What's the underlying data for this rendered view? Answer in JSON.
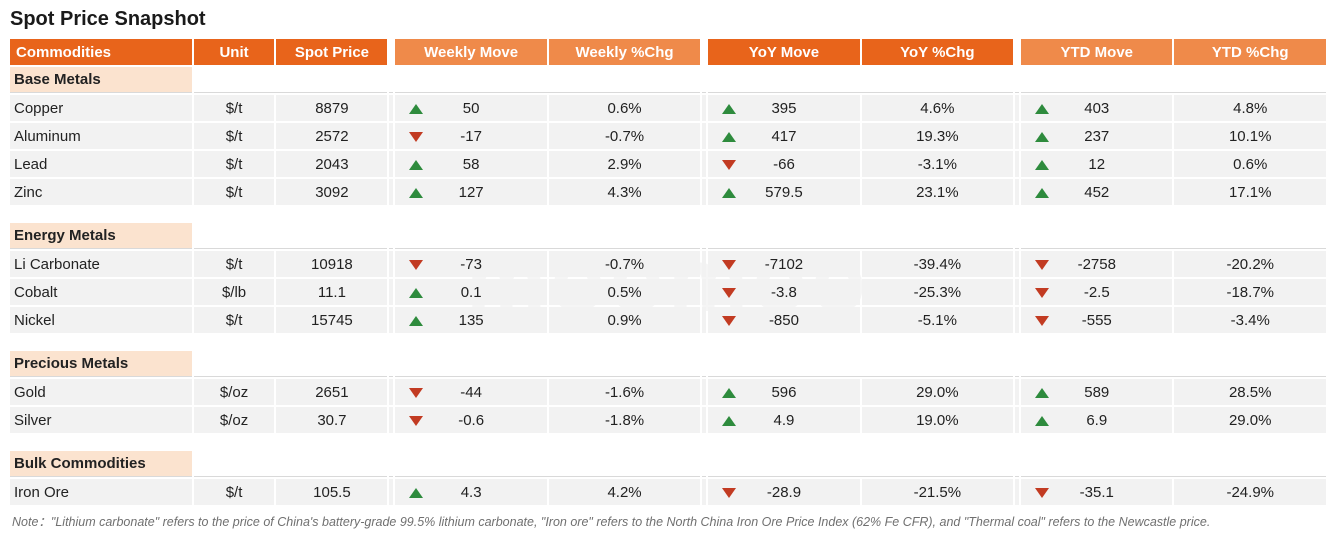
{
  "title": "Spot Price Snapshot",
  "headers": {
    "commodities": "Commodities",
    "unit": "Unit",
    "spot_price": "Spot Price",
    "weekly_move": "Weekly Move",
    "weekly_pct": "Weekly %Chg",
    "yoy_move": "YoY Move",
    "yoy_pct": "YoY  %Chg",
    "ytd_move": "YTD Move",
    "ytd_pct": "YTD %Chg"
  },
  "header_colors": {
    "group1": "#e8641b",
    "group2": "#ef8a4a",
    "group3": "#e8641b",
    "group4": "#ef8a4a"
  },
  "section_bg": "#fbe3cf",
  "row_bg": "#f2f2f2",
  "up_color": "#2e8b3d",
  "down_color": "#c23b22",
  "sections": [
    {
      "label": "Base Metals",
      "rows": [
        {
          "name": "Copper",
          "unit": "$/t",
          "price": "8879",
          "wm": "50",
          "wd": "up",
          "wp": "0.6%",
          "ym": "395",
          "yd": "up",
          "yp": "4.6%",
          "dm": "403",
          "dd": "up",
          "dp": "4.8%"
        },
        {
          "name": "Aluminum",
          "unit": "$/t",
          "price": "2572",
          "wm": "-17",
          "wd": "down",
          "wp": "-0.7%",
          "ym": "417",
          "yd": "up",
          "yp": "19.3%",
          "dm": "237",
          "dd": "up",
          "dp": "10.1%"
        },
        {
          "name": "Lead",
          "unit": "$/t",
          "price": "2043",
          "wm": "58",
          "wd": "up",
          "wp": "2.9%",
          "ym": "-66",
          "yd": "down",
          "yp": "-3.1%",
          "dm": "12",
          "dd": "up",
          "dp": "0.6%"
        },
        {
          "name": "Zinc",
          "unit": "$/t",
          "price": "3092",
          "wm": "127",
          "wd": "up",
          "wp": "4.3%",
          "ym": "579.5",
          "yd": "up",
          "yp": "23.1%",
          "dm": "452",
          "dd": "up",
          "dp": "17.1%"
        }
      ]
    },
    {
      "label": "Energy Metals",
      "rows": [
        {
          "name": "Li Carbonate",
          "unit": "$/t",
          "price": "10918",
          "wm": "-73",
          "wd": "down",
          "wp": "-0.7%",
          "ym": "-7102",
          "yd": "down",
          "yp": "-39.4%",
          "dm": "-2758",
          "dd": "down",
          "dp": "-20.2%"
        },
        {
          "name": "Cobalt",
          "unit": "$/lb",
          "price": "11.1",
          "wm": "0.1",
          "wd": "up",
          "wp": "0.5%",
          "ym": "-3.8",
          "yd": "down",
          "yp": "-25.3%",
          "dm": "-2.5",
          "dd": "down",
          "dp": "-18.7%"
        },
        {
          "name": "Nickel",
          "unit": "$/t",
          "price": "15745",
          "wm": "135",
          "wd": "up",
          "wp": "0.9%",
          "ym": "-850",
          "yd": "down",
          "yp": "-5.1%",
          "dm": "-555",
          "dd": "down",
          "dp": "-3.4%"
        }
      ]
    },
    {
      "label": "Precious Metals",
      "rows": [
        {
          "name": "Gold",
          "unit": "$/oz",
          "price": "2651",
          "wm": "-44",
          "wd": "down",
          "wp": "-1.6%",
          "ym": "596",
          "yd": "up",
          "yp": "29.0%",
          "dm": "589",
          "dd": "up",
          "dp": "28.5%"
        },
        {
          "name": "Silver",
          "unit": "$/oz",
          "price": "30.7",
          "wm": "-0.6",
          "wd": "down",
          "wp": "-1.8%",
          "ym": "4.9",
          "yd": "up",
          "yp": "19.0%",
          "dm": "6.9",
          "dd": "up",
          "dp": "29.0%"
        }
      ]
    },
    {
      "label": "Bulk Commodities",
      "rows": [
        {
          "name": "Iron Ore",
          "unit": "$/t",
          "price": "105.5",
          "wm": "4.3",
          "wd": "up",
          "wp": "4.2%",
          "ym": "-28.9",
          "yd": "down",
          "yp": "-21.5%",
          "dm": "-35.1",
          "dd": "down",
          "dp": "-24.9%"
        }
      ]
    }
  ],
  "note": "Note：\"Lithium carbonate\" refers to the price of China's battery-grade 99.5% lithium carbonate, \"Iron ore\" refers to the North China Iron Ore Price Index (62% Fe CFR), and \"Thermal coal\" refers to the Newcastle price.",
  "watermark": "moomoo"
}
